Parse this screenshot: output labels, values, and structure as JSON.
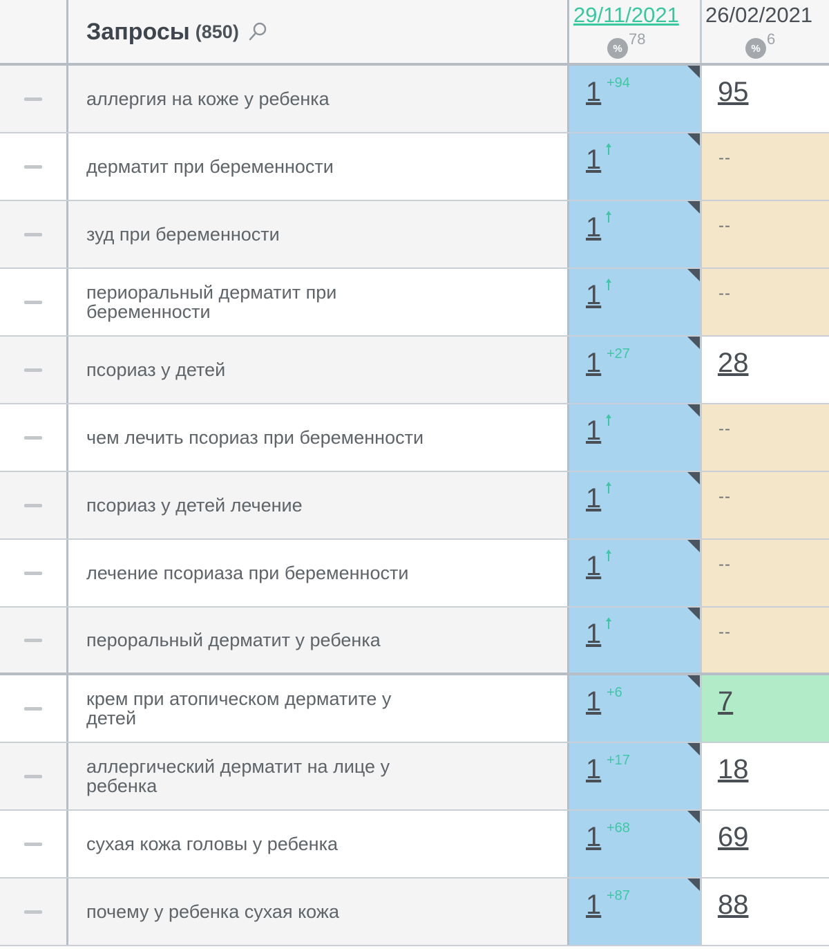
{
  "header": {
    "title": "Запросы",
    "count": "(850)",
    "dates": [
      {
        "label": "29/11/2021",
        "pct_icon": "%",
        "pct_value": "78"
      },
      {
        "label": "26/02/2021",
        "pct_icon": "%",
        "pct_value": "6"
      }
    ]
  },
  "rows": [
    {
      "query": "аллергия на коже у ребенка",
      "rank": "1",
      "delta": "+94",
      "change": "delta",
      "prev": "95",
      "prev_type": "value",
      "zebra": true,
      "thick": false
    },
    {
      "query": "дерматит при беременности",
      "rank": "1",
      "delta": "",
      "change": "up",
      "prev": "--",
      "prev_type": "empty",
      "zebra": false,
      "thick": false
    },
    {
      "query": "зуд при беременности",
      "rank": "1",
      "delta": "",
      "change": "up",
      "prev": "--",
      "prev_type": "empty",
      "zebra": true,
      "thick": false
    },
    {
      "query": "периоральный дерматит при беременности",
      "rank": "1",
      "delta": "",
      "change": "up",
      "prev": "--",
      "prev_type": "empty",
      "zebra": false,
      "thick": false
    },
    {
      "query": "псориаз у детей",
      "rank": "1",
      "delta": "+27",
      "change": "delta",
      "prev": "28",
      "prev_type": "value",
      "zebra": true,
      "thick": false
    },
    {
      "query": "чем лечить псориаз при беременности",
      "rank": "1",
      "delta": "",
      "change": "up",
      "prev": "--",
      "prev_type": "empty",
      "zebra": false,
      "thick": false
    },
    {
      "query": "псориаз у детей лечение",
      "rank": "1",
      "delta": "",
      "change": "up",
      "prev": "--",
      "prev_type": "empty",
      "zebra": true,
      "thick": false
    },
    {
      "query": "лечение псориаза при беременности",
      "rank": "1",
      "delta": "",
      "change": "up",
      "prev": "--",
      "prev_type": "empty",
      "zebra": false,
      "thick": false
    },
    {
      "query": "пероральный дерматит у ребенка",
      "rank": "1",
      "delta": "",
      "change": "up",
      "prev": "--",
      "prev_type": "empty",
      "zebra": true,
      "thick": true
    },
    {
      "query": "крем при атопическом дерматите у детей",
      "rank": "1",
      "delta": "+6",
      "change": "delta",
      "prev": "7",
      "prev_type": "good",
      "zebra": false,
      "thick": false
    },
    {
      "query": "аллергический дерматит на лице у ребенка",
      "rank": "1",
      "delta": "+17",
      "change": "delta",
      "prev": "18",
      "prev_type": "value",
      "zebra": true,
      "thick": false
    },
    {
      "query": "сухая кожа головы у ребенка",
      "rank": "1",
      "delta": "+68",
      "change": "delta",
      "prev": "69",
      "prev_type": "value",
      "zebra": false,
      "thick": false
    },
    {
      "query": "почему у ребенка сухая кожа",
      "rank": "1",
      "delta": "+87",
      "change": "delta",
      "prev": "88",
      "prev_type": "value",
      "zebra": true,
      "thick": false
    }
  ],
  "colors": {
    "date_link": "#39c7a0",
    "current_col_bg": "#a9d4f0",
    "missing_bg": "#f4e6c8",
    "top_bg": "#b1ebc8",
    "delta_green": "#3ec7a3"
  }
}
